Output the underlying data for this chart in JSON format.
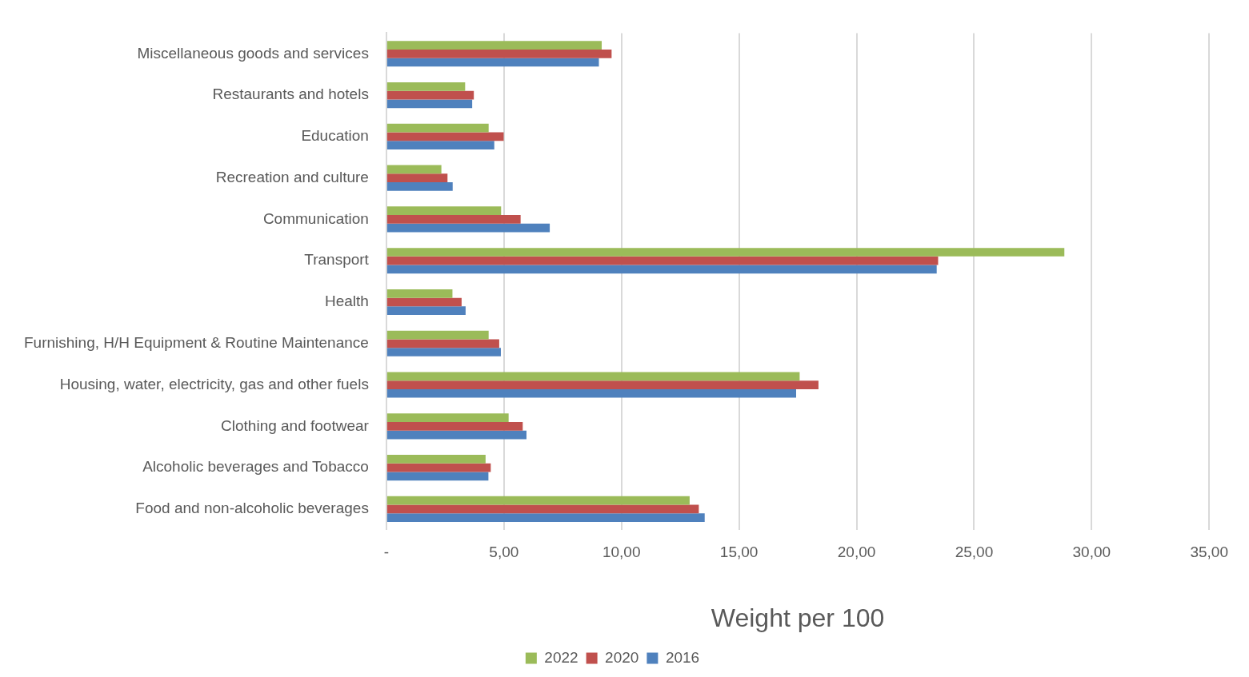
{
  "chart_data": {
    "type": "bar",
    "orientation": "horizontal",
    "xlabel": "Weight per 100",
    "categories": [
      "Miscellaneous goods and services",
      "Restaurants and hotels",
      "Education",
      "Recreation and culture",
      "Communication",
      "Transport",
      "Health",
      "Furnishing, H/H Equipment & Routine Maintenance",
      "Housing, water, electricity, gas and other fuels",
      "Clothing and footwear",
      "Alcoholic beverages and Tobacco",
      "Food and non-alcoholic beverages"
    ],
    "series": [
      {
        "name": "2022",
        "color": "#9bbb59",
        "values": [
          9.16,
          3.35,
          4.35,
          2.34,
          4.88,
          28.84,
          2.81,
          4.35,
          17.58,
          5.2,
          4.22,
          12.9
        ]
      },
      {
        "name": "2020",
        "color": "#c0504d",
        "values": [
          9.58,
          3.72,
          4.99,
          2.6,
          5.71,
          23.47,
          3.2,
          4.8,
          18.38,
          5.8,
          4.44,
          13.29
        ]
      },
      {
        "name": "2016",
        "color": "#4f81bd",
        "values": [
          9.04,
          3.65,
          4.59,
          2.82,
          6.95,
          23.41,
          3.37,
          4.87,
          17.43,
          5.96,
          4.34,
          13.54
        ]
      }
    ],
    "xlim": [
      0,
      35
    ],
    "xticks": [
      {
        "value": 0,
        "label": "-"
      },
      {
        "value": 5,
        "label": "5,00"
      },
      {
        "value": 10,
        "label": "10,00"
      },
      {
        "value": 15,
        "label": "15,00"
      },
      {
        "value": 20,
        "label": "20,00"
      },
      {
        "value": 25,
        "label": "25,00"
      },
      {
        "value": 30,
        "label": "30,00"
      },
      {
        "value": 35,
        "label": "35,00"
      }
    ],
    "grid": "x",
    "legend": "bottom"
  }
}
